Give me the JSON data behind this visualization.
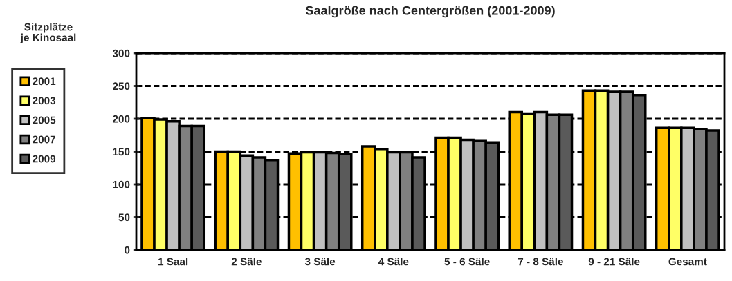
{
  "chart_data": {
    "type": "bar",
    "title": "Saalgröße nach Centergrößen (2001-2009)",
    "ylabel": "Sitzplätze\nje Kinosaal",
    "categories": [
      "1 Saal",
      "2 Säle",
      "3 Säle",
      "4 Säle",
      "5 - 6 Säle",
      "7 - 8 Säle",
      "9 - 21 Säle",
      "Gesamt"
    ],
    "series": [
      {
        "name": "2001",
        "color": "#ffc000",
        "values": [
          201,
          150,
          147,
          158,
          171,
          210,
          243,
          186
        ]
      },
      {
        "name": "2003",
        "color": "#ffff66",
        "values": [
          199,
          150,
          149,
          154,
          171,
          208,
          243,
          186
        ]
      },
      {
        "name": "2005",
        "color": "#c0c0c0",
        "values": [
          196,
          144,
          149,
          149,
          168,
          210,
          241,
          186
        ]
      },
      {
        "name": "2007",
        "color": "#808080",
        "values": [
          189,
          141,
          148,
          149,
          166,
          206,
          241,
          184
        ]
      },
      {
        "name": "2009",
        "color": "#5a5a5a",
        "values": [
          189,
          137,
          146,
          141,
          164,
          206,
          236,
          182
        ]
      }
    ],
    "ylim": [
      0,
      300
    ],
    "yticks": [
      0,
      50,
      100,
      150,
      200,
      250,
      300
    ],
    "grid": "y",
    "legend": "left"
  }
}
